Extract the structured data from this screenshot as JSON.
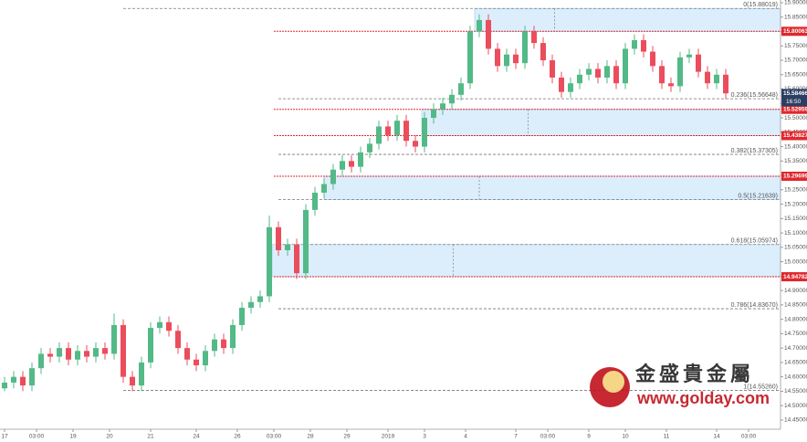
{
  "chart_data": {
    "type": "candlestick",
    "colors": {
      "up": "#53b987",
      "down": "#eb4d5c",
      "zone": "#dceefc",
      "level": "#e0282e",
      "last": "#2c3e63"
    },
    "ylim": [
      14.418,
      15.9095
    ],
    "xlim": [
      -0.5,
      85
    ],
    "yticks": [
      {
        "value": 14.45,
        "label": "14.45000"
      },
      {
        "value": 14.5,
        "label": "14.50000"
      },
      {
        "value": 14.55,
        "label": "14.55000"
      },
      {
        "value": 14.6,
        "label": "14.60000"
      },
      {
        "value": 14.65,
        "label": "14.65000"
      },
      {
        "value": 14.7,
        "label": "14.70000"
      },
      {
        "value": 14.75,
        "label": "14.75000"
      },
      {
        "value": 14.8,
        "label": "14.80000"
      },
      {
        "value": 14.85,
        "label": "14.85000"
      },
      {
        "value": 14.9,
        "label": "14.90000"
      },
      {
        "value": 14.95,
        "label": "14.95000"
      },
      {
        "value": 15.0,
        "label": "15.00000"
      },
      {
        "value": 15.05,
        "label": "15.05000"
      },
      {
        "value": 15.1,
        "label": "15.10000"
      },
      {
        "value": 15.15,
        "label": "15.15000"
      },
      {
        "value": 15.2,
        "label": "15.20000"
      },
      {
        "value": 15.25,
        "label": "15.25000"
      },
      {
        "value": 15.3,
        "label": "15.30000"
      },
      {
        "value": 15.35,
        "label": "15.35000"
      },
      {
        "value": 15.4,
        "label": "15.40000"
      },
      {
        "value": 15.45,
        "label": "15.45000"
      },
      {
        "value": 15.5,
        "label": "15.50000"
      },
      {
        "value": 15.55,
        "label": "15.55000"
      },
      {
        "value": 15.6,
        "label": "15.60000"
      },
      {
        "value": 15.65,
        "label": "15.65000"
      },
      {
        "value": 15.7,
        "label": "15.70000"
      },
      {
        "value": 15.75,
        "label": "15.75000"
      },
      {
        "value": 15.8,
        "label": "15.80000"
      },
      {
        "value": 15.85,
        "label": "15.85000"
      },
      {
        "value": 15.9,
        "label": "15.90000"
      }
    ],
    "xticks": [
      {
        "value": 0,
        "label": "17"
      },
      {
        "value": 3.5,
        "label": "03:00"
      },
      {
        "value": 7.5,
        "label": "19"
      },
      {
        "value": 11.5,
        "label": "20"
      },
      {
        "value": 16,
        "label": "21"
      },
      {
        "value": 21,
        "label": "24"
      },
      {
        "value": 25.5,
        "label": "26"
      },
      {
        "value": 29.5,
        "label": "03:00"
      },
      {
        "value": 33.5,
        "label": "28"
      },
      {
        "value": 37.5,
        "label": "29"
      },
      {
        "value": 42,
        "label": "2019"
      },
      {
        "value": 46,
        "label": "3"
      },
      {
        "value": 50.5,
        "label": "4"
      },
      {
        "value": 56,
        "label": "7"
      },
      {
        "value": 59.5,
        "label": "03:00"
      },
      {
        "value": 64,
        "label": "9"
      },
      {
        "value": 68,
        "label": "10"
      },
      {
        "value": 72.5,
        "label": "11"
      },
      {
        "value": 78,
        "label": "14"
      },
      {
        "value": 81.5,
        "label": "03:00"
      }
    ],
    "open": [
      14.56,
      14.58,
      14.6,
      14.57,
      14.63,
      14.68,
      14.67,
      14.7,
      14.66,
      14.69,
      14.67,
      14.7,
      14.68,
      14.78,
      14.6,
      14.57,
      14.65,
      14.77,
      14.79,
      14.76,
      14.7,
      14.66,
      14.64,
      14.69,
      14.73,
      14.7,
      14.78,
      14.84,
      14.86,
      14.88,
      15.12,
      15.04,
      15.06,
      14.96,
      15.18,
      15.24,
      15.27,
      15.32,
      15.35,
      15.33,
      15.38,
      15.41,
      15.47,
      15.44,
      15.49,
      15.42,
      15.4,
      15.5,
      15.53,
      15.55,
      15.58,
      15.62,
      15.8,
      15.84,
      15.74,
      15.68,
      15.72,
      15.69,
      15.8,
      15.76,
      15.7,
      15.64,
      15.59,
      15.62,
      15.65,
      15.67,
      15.64,
      15.68,
      15.62,
      15.74,
      15.77,
      15.73,
      15.68,
      15.62,
      15.61,
      15.71,
      15.72,
      15.66,
      15.62,
      15.65
    ],
    "high": [
      14.6,
      14.62,
      14.62,
      14.65,
      14.7,
      14.7,
      14.72,
      14.72,
      14.71,
      14.71,
      14.72,
      14.72,
      14.82,
      14.8,
      14.62,
      14.67,
      14.79,
      14.81,
      14.81,
      14.78,
      14.72,
      14.68,
      14.71,
      14.75,
      14.75,
      14.8,
      14.86,
      14.88,
      14.9,
      15.16,
      15.14,
      15.08,
      15.08,
      15.2,
      15.26,
      15.29,
      15.34,
      15.37,
      15.37,
      15.4,
      15.43,
      15.49,
      15.49,
      15.51,
      15.51,
      15.44,
      15.52,
      15.55,
      15.57,
      15.6,
      15.64,
      15.82,
      15.86,
      15.86,
      15.76,
      15.74,
      15.74,
      15.82,
      15.82,
      15.78,
      15.72,
      15.66,
      15.64,
      15.67,
      15.69,
      15.69,
      15.7,
      15.7,
      15.76,
      15.79,
      15.79,
      15.75,
      15.7,
      15.64,
      15.73,
      15.74,
      15.74,
      15.68,
      15.67,
      15.67
    ],
    "low": [
      14.55,
      14.56,
      14.55,
      14.55,
      14.61,
      14.65,
      14.65,
      14.64,
      14.64,
      14.65,
      14.65,
      14.66,
      14.66,
      14.58,
      14.55,
      14.55,
      14.63,
      14.75,
      14.74,
      14.68,
      14.64,
      14.62,
      14.62,
      14.67,
      14.68,
      14.68,
      14.76,
      14.82,
      14.84,
      14.86,
      15.02,
      15.02,
      14.94,
      14.94,
      15.16,
      15.22,
      15.25,
      15.3,
      15.31,
      15.31,
      15.36,
      15.39,
      15.42,
      15.42,
      15.4,
      15.38,
      15.38,
      15.48,
      15.51,
      15.53,
      15.56,
      15.6,
      15.78,
      15.72,
      15.66,
      15.66,
      15.67,
      15.67,
      15.74,
      15.68,
      15.62,
      15.57,
      15.57,
      15.6,
      15.63,
      15.62,
      15.62,
      15.6,
      15.6,
      15.72,
      15.71,
      15.66,
      15.6,
      15.59,
      15.59,
      15.69,
      15.64,
      15.6,
      15.6,
      15.565
    ],
    "close": [
      14.58,
      14.6,
      14.57,
      14.63,
      14.68,
      14.67,
      14.7,
      14.66,
      14.69,
      14.67,
      14.7,
      14.68,
      14.78,
      14.6,
      14.57,
      14.65,
      14.77,
      14.79,
      14.76,
      14.7,
      14.66,
      14.64,
      14.69,
      14.73,
      14.7,
      14.78,
      14.84,
      14.86,
      14.88,
      15.12,
      15.04,
      15.06,
      14.96,
      15.18,
      15.24,
      15.27,
      15.32,
      15.35,
      15.33,
      15.38,
      15.41,
      15.47,
      15.44,
      15.49,
      15.42,
      15.4,
      15.5,
      15.53,
      15.55,
      15.58,
      15.62,
      15.8,
      15.84,
      15.74,
      15.68,
      15.72,
      15.69,
      15.8,
      15.76,
      15.7,
      15.64,
      15.59,
      15.62,
      15.65,
      15.67,
      15.64,
      15.68,
      15.62,
      15.74,
      15.77,
      15.73,
      15.68,
      15.62,
      15.61,
      15.71,
      15.72,
      15.66,
      15.62,
      15.65,
      15.585
    ],
    "fib_levels": [
      {
        "value": 15.88019,
        "label": "0(15.88019)"
      },
      {
        "value": 15.56648,
        "label": "0.236(15.56648)"
      },
      {
        "value": 15.37305,
        "label": "0.382(15.37305)"
      },
      {
        "value": 15.21639,
        "label": "0.5(15.21639)"
      },
      {
        "value": 15.05974,
        "label": "0.618(15.05974)"
      },
      {
        "value": 14.8367,
        "label": "0.786(14.83670)"
      },
      {
        "value": 14.5526,
        "label": "1(14.55260)"
      }
    ],
    "price_levels": [
      15.80063,
      15.52959,
      15.43827,
      15.29699,
      14.94782
    ],
    "last_price": {
      "value": 15.58466,
      "label": "15.58466"
    },
    "countdown": "16:50",
    "watermark": {
      "brand": "金盛貴金屬",
      "url": "www.golday.com"
    }
  }
}
